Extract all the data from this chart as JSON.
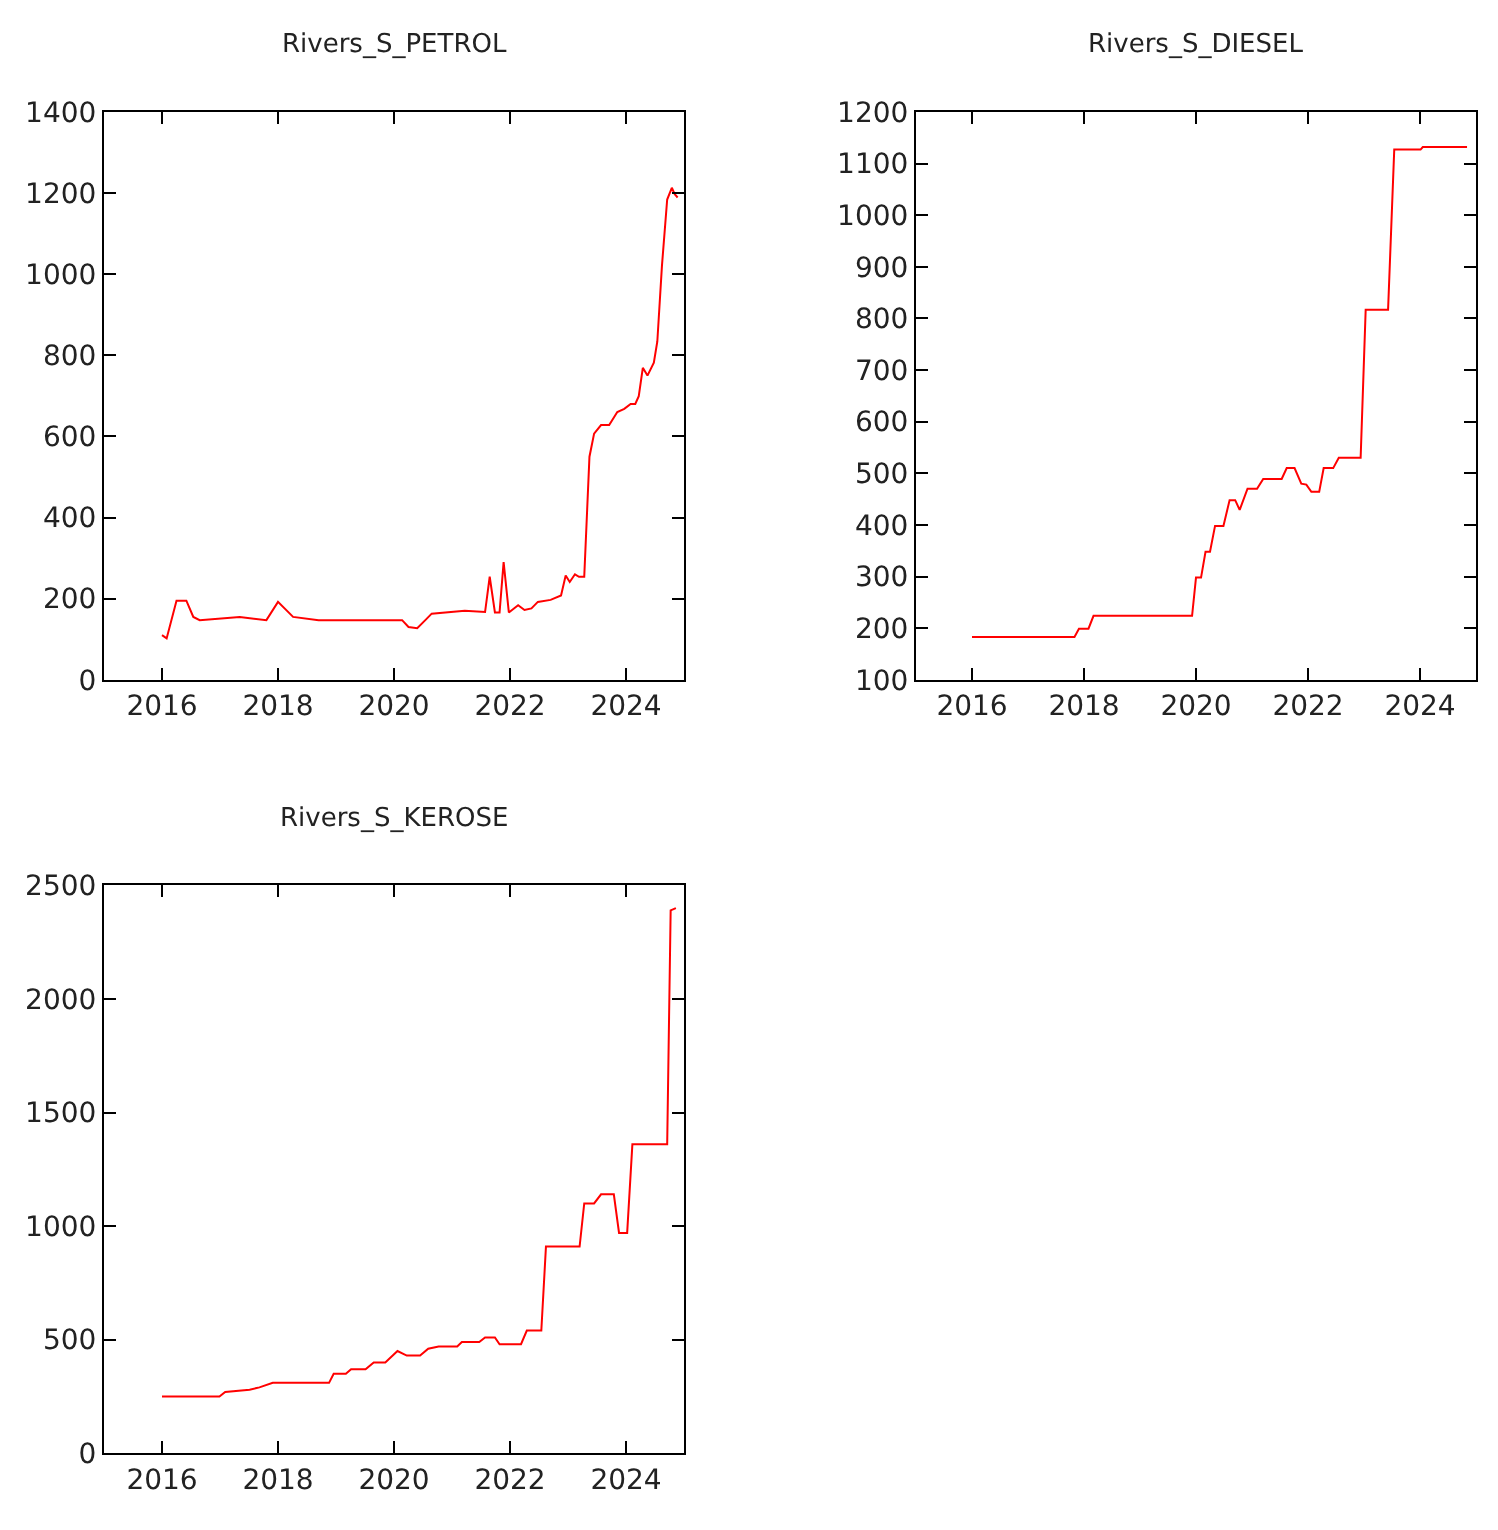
{
  "chart_data": [
    {
      "type": "line",
      "title": "Rivers_S_PETROL",
      "xlim": [
        2015,
        2025
      ],
      "xticks": [
        2016,
        2018,
        2020,
        2022,
        2024
      ],
      "ylim": [
        0,
        1400
      ],
      "yticks": [
        0,
        200,
        400,
        600,
        800,
        1000,
        1200,
        1400
      ],
      "grid": false,
      "marker": "none",
      "line_style": "solid",
      "series": [
        {
          "color": "#ff0000",
          "x": [
            2016.0,
            2016.08,
            2016.25,
            2016.42,
            2016.54,
            2016.65,
            2017.34,
            2017.8,
            2018.0,
            2018.26,
            2018.7,
            2019.62,
            2020.14,
            2020.25,
            2020.4,
            2020.54,
            2020.65,
            2021.22,
            2021.57,
            2021.65,
            2021.74,
            2021.82,
            2021.89,
            2021.98,
            2022.14,
            2022.25,
            2022.37,
            2022.48,
            2022.7,
            2022.88,
            2022.96,
            2023.03,
            2023.12,
            2023.19,
            2023.28,
            2023.37,
            2023.45,
            2023.57,
            2023.71,
            2023.85,
            2023.97,
            2024.08,
            2024.16,
            2024.22,
            2024.29,
            2024.37,
            2024.48,
            2024.54,
            2024.62,
            2024.71,
            2024.79,
            2024.84,
            2024.89
          ],
          "values": [
            110,
            102,
            195,
            195,
            155,
            147,
            155,
            147,
            192,
            155,
            147,
            147,
            147,
            130,
            127,
            147,
            163,
            170,
            167,
            254,
            166,
            166,
            290,
            166,
            184,
            172,
            176,
            192,
            197,
            208,
            257,
            241,
            260,
            254,
            254,
            550,
            607,
            628,
            628,
            660,
            668,
            680,
            680,
            699,
            769,
            750,
            782,
            834,
            1021,
            1184,
            1213,
            1197,
            1189
          ]
        }
      ]
    },
    {
      "type": "line",
      "title": "Rivers_S_DIESEL",
      "xlim": [
        2015,
        2025
      ],
      "xticks": [
        2016,
        2018,
        2020,
        2022,
        2024
      ],
      "ylim": [
        100,
        1200
      ],
      "yticks": [
        100,
        200,
        300,
        400,
        500,
        600,
        700,
        800,
        900,
        1000,
        1100,
        1200
      ],
      "grid": false,
      "marker": "none",
      "line_style": "solid",
      "series": [
        {
          "color": "#ff0000",
          "x": [
            2016.0,
            2017.83,
            2017.91,
            2018.08,
            2018.17,
            2019.93,
            2020.0,
            2020.09,
            2020.17,
            2020.25,
            2020.34,
            2020.49,
            2020.6,
            2020.7,
            2020.78,
            2020.92,
            2021.09,
            2021.2,
            2021.53,
            2021.62,
            2021.76,
            2021.88,
            2021.97,
            2022.06,
            2022.2,
            2022.28,
            2022.45,
            2022.55,
            2022.94,
            2023.03,
            2023.43,
            2023.54,
            2024.01,
            2024.05,
            2024.84
          ],
          "values": [
            183,
            183,
            199,
            199,
            224,
            224,
            298,
            298,
            348,
            348,
            398,
            398,
            448,
            448,
            429,
            470,
            470,
            489,
            489,
            510,
            510,
            480,
            478,
            464,
            464,
            510,
            510,
            530,
            530,
            817,
            817,
            1127,
            1127,
            1132,
            1132
          ]
        }
      ]
    },
    {
      "type": "line",
      "title": "Rivers_S_KEROSE",
      "xlim": [
        2015,
        2025
      ],
      "xticks": [
        2016,
        2018,
        2020,
        2022,
        2024
      ],
      "ylim": [
        0,
        2500
      ],
      "yticks": [
        0,
        500,
        1000,
        1500,
        2000,
        2500
      ],
      "grid": false,
      "marker": "none",
      "line_style": "solid",
      "series": [
        {
          "color": "#ff0000",
          "x": [
            2016.0,
            2016.99,
            2017.09,
            2017.51,
            2017.68,
            2017.91,
            2018.88,
            2018.96,
            2019.17,
            2019.26,
            2019.51,
            2019.65,
            2019.85,
            2020.06,
            2020.22,
            2020.45,
            2020.59,
            2020.77,
            2021.09,
            2021.17,
            2021.47,
            2021.57,
            2021.74,
            2021.82,
            2021.97,
            2022.19,
            2022.29,
            2022.54,
            2022.62,
            2023.2,
            2023.28,
            2023.45,
            2023.57,
            2023.79,
            2023.88,
            2024.02,
            2024.11,
            2024.71,
            2024.77,
            2024.86
          ],
          "values": [
            250,
            250,
            270,
            280,
            290,
            310,
            310,
            350,
            350,
            370,
            370,
            400,
            400,
            450,
            430,
            430,
            460,
            470,
            470,
            490,
            490,
            510,
            510,
            480,
            480,
            480,
            540,
            540,
            910,
            910,
            1100,
            1100,
            1140,
            1140,
            970,
            970,
            1360,
            1360,
            2390,
            2400
          ]
        }
      ]
    }
  ]
}
